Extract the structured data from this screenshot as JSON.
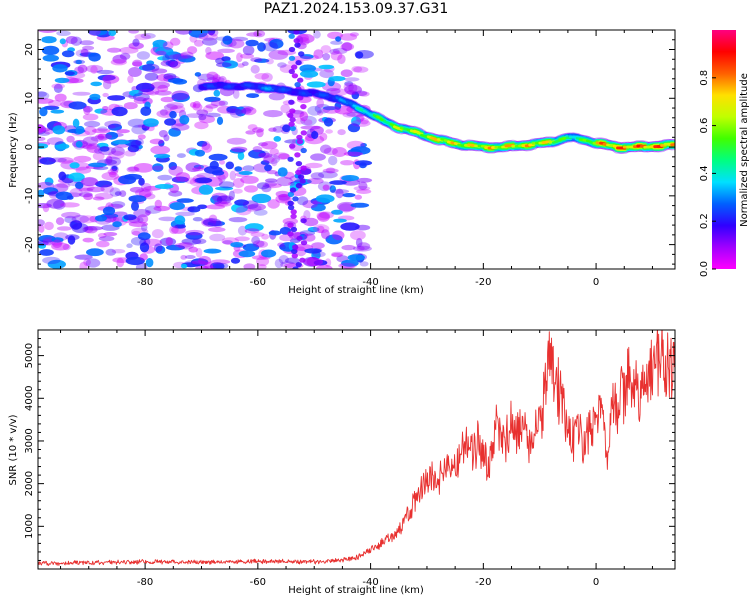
{
  "title": "PAZ1.2024.153.09.37.G31",
  "chart_data": [
    {
      "type": "heatmap",
      "xlabel": "Height of straight line (km)",
      "ylabel": "Frequency (Hz)",
      "xlim": [
        -99,
        14
      ],
      "ylim": [
        -25,
        24
      ],
      "xticks": [
        -80,
        -60,
        -40,
        -20,
        0
      ],
      "yticks": [
        -20,
        -10,
        0,
        10,
        20
      ],
      "colorbar": {
        "label": "Normalized spectral amplitude",
        "range": [
          0,
          1
        ],
        "ticks": [
          "0.0",
          "0.2",
          "0.4",
          "0.6",
          "0.8"
        ],
        "colormap": [
          "#ff00ff",
          "#a000ff",
          "#3000ff",
          "#0060ff",
          "#00e0ff",
          "#00ff80",
          "#40ff00",
          "#c0ff00",
          "#ffe000",
          "#ff6000",
          "#ff0000",
          "#ff0080"
        ]
      },
      "ridge": {
        "description": "dominant frequency trace",
        "x": [
          -70,
          -62,
          -58,
          -55,
          -50,
          -46,
          -42,
          -38,
          -35,
          -32,
          -28,
          -24,
          -20,
          -16,
          -12,
          -8,
          -5,
          -2,
          0,
          4,
          8,
          14
        ],
        "y": [
          12.5,
          12.5,
          12.2,
          11.5,
          11,
          10,
          8,
          5.5,
          4,
          3,
          1.5,
          0.5,
          0,
          0,
          0.5,
          1,
          2,
          1.5,
          0.8,
          0,
          0,
          0.5
        ],
        "amplitude": [
          0.25,
          0.25,
          0.35,
          0.25,
          0.25,
          0.3,
          0.45,
          0.6,
          0.7,
          0.7,
          0.8,
          0.75,
          0.8,
          0.8,
          0.8,
          0.75,
          0.5,
          0.6,
          0.85,
          0.9,
          0.9,
          0.9
        ]
      },
      "noise_region": {
        "x_from": -99,
        "x_to": -41,
        "amplitude_range": [
          0.05,
          0.35
        ]
      }
    },
    {
      "type": "line",
      "xlabel": "Height of straight line (km)",
      "ylabel": "SNR (10 * v/v)",
      "xlim": [
        -99,
        14
      ],
      "ylim": [
        0,
        5600
      ],
      "xticks": [
        -80,
        -60,
        -40,
        -20,
        0
      ],
      "yticks": [
        1000,
        2000,
        3000,
        4000,
        5000
      ],
      "color": "#e8302f",
      "series": [
        {
          "x": [
            -99,
            -90,
            -80,
            -70,
            -60,
            -50,
            -45,
            -42,
            -40,
            -38,
            -36,
            -34,
            -32,
            -31,
            -30,
            -29,
            -28,
            -27,
            -26,
            -25,
            -24,
            -23,
            -22,
            -21,
            -20,
            -19,
            -18,
            -17,
            -16,
            -15,
            -14,
            -13,
            -12,
            -11,
            -10,
            -9,
            -8,
            -7,
            -6,
            -5,
            -4,
            -3,
            -2,
            -1,
            0,
            1,
            2,
            3,
            4,
            5,
            6,
            7,
            8,
            9,
            10,
            11,
            12,
            13,
            14
          ],
          "y": [
            130,
            150,
            170,
            160,
            180,
            170,
            200,
            300,
            450,
            600,
            800,
            1100,
            1600,
            1900,
            2000,
            2200,
            2000,
            2400,
            2600,
            2200,
            2900,
            3000,
            2700,
            3000,
            2600,
            2400,
            3300,
            3400,
            3000,
            3500,
            3200,
            3300,
            3000,
            3100,
            3400,
            4200,
            5100,
            4400,
            3900,
            3400,
            3100,
            3200,
            2800,
            3600,
            3200,
            3700,
            2600,
            3800,
            3900,
            4200,
            4500,
            4300,
            4000,
            4500,
            4700,
            4900,
            4800,
            4700,
            4900
          ]
        }
      ]
    }
  ]
}
